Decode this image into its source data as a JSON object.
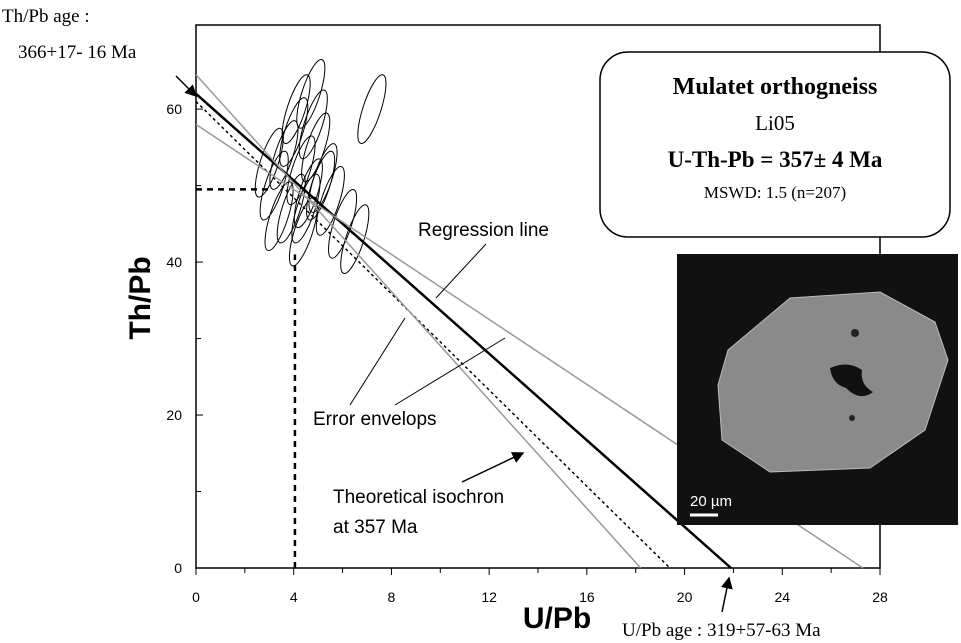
{
  "chart_data": {
    "type": "line",
    "xlabel": "U/Pb",
    "ylabel": "Th/Pb",
    "xlim": [
      0,
      28
    ],
    "ylim": [
      0,
      71
    ],
    "xticks": [
      0,
      4,
      8,
      12,
      16,
      20,
      24,
      28
    ],
    "xminorticks": [
      2,
      6,
      10,
      14,
      18,
      22,
      26
    ],
    "yticks": [
      0,
      20,
      40,
      60
    ],
    "yminorticks": [
      10,
      30,
      50
    ],
    "series": [
      {
        "color": "#000000",
        "style": "solid",
        "x": [
          0,
          21.9
        ],
        "values": [
          62,
          0
        ]
      },
      {
        "color": "#000000",
        "style": "dotted",
        "x": [
          0,
          19.4
        ],
        "values": [
          61,
          0
        ]
      },
      {
        "color": "#999999",
        "style": "solid",
        "x": [
          0,
          18.2
        ],
        "values": [
          64.5,
          0
        ]
      },
      {
        "color": "#999999",
        "style": "solid",
        "x": [
          0,
          27.3
        ],
        "values": [
          58,
          0
        ]
      },
      {
        "color": "#000000",
        "style": "dashed",
        "x": [
          0,
          3
        ],
        "values": [
          49.5,
          49.5
        ]
      },
      {
        "color": "#000000",
        "style": "dashed",
        "x": [
          4.05,
          4.05
        ],
        "values": [
          0,
          41
        ]
      }
    ],
    "ellipses": {
      "x": [
        3.2,
        3.6,
        4.0,
        4.3,
        4.6,
        4.9,
        5.2,
        3.4,
        3.9,
        4.4,
        4.8,
        5.5,
        6.0,
        6.5,
        3.0,
        4.1,
        4.7,
        5.1,
        7.2,
        4.5
      ],
      "values": [
        50,
        54,
        57,
        52,
        49,
        55,
        51,
        46,
        47,
        44,
        58,
        48,
        45,
        43,
        53,
        60,
        62,
        50,
        60,
        47
      ]
    },
    "annotations": [
      "Th/Pb age :",
      "366+17- 16 Ma",
      "Regression line",
      "Error envelops",
      "Theoretical isochron",
      "at 357 Ma",
      "U/Pb age : 319+57-63 Ma"
    ],
    "infobox": [
      "Mulatet orthogneiss",
      "Li05",
      "U-Th-Pb = 357± 4 Ma",
      "MSWD: 1.5 (n=207)"
    ],
    "scalebar": "20 µm"
  }
}
